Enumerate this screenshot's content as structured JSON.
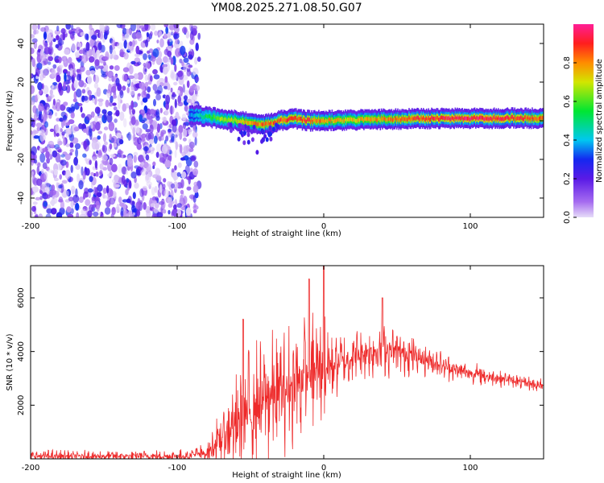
{
  "title": "YM08.2025.271.08.50.G07",
  "colors": {
    "snr_line": "#ee2a2a",
    "axis": "#000000"
  },
  "chart_data": [
    {
      "type": "heatmap",
      "xlabel": "Height of straight line (km)",
      "ylabel": "Frequency (Hz)",
      "xlim": [
        -200,
        150
      ],
      "ylim": [
        -50,
        50
      ],
      "xticks": [
        -200,
        -100,
        0,
        100
      ],
      "yticks": [
        -40,
        -20,
        0,
        20,
        40
      ],
      "grid": false,
      "colorbar": {
        "label": "Normalized spectral amplitude",
        "range": [
          0,
          1
        ],
        "ticks": [
          0.0,
          0.2,
          0.4,
          0.6,
          0.8
        ],
        "colormap": "rainbow (violet → blue → cyan → green → yellow → red → magenta)"
      },
      "noise_region_x": [
        -200,
        -85
      ],
      "ridge": {
        "x": [
          -90,
          -80,
          -70,
          -60,
          -50,
          -40,
          -30,
          -20,
          -10,
          0,
          20,
          40,
          60,
          80,
          100,
          120,
          150
        ],
        "freq": [
          3,
          2,
          1,
          0,
          -1,
          -2,
          0,
          1,
          0,
          0,
          0.5,
          0.8,
          1,
          1.2,
          1.2,
          1.3,
          1.4
        ],
        "peak_amplitude": [
          0.4,
          0.6,
          0.7,
          0.75,
          0.85,
          0.9,
          0.95,
          0.95,
          0.95,
          0.85,
          0.8,
          0.85,
          0.95,
          1.0,
          1.0,
          1.0,
          0.9
        ]
      }
    },
    {
      "type": "line",
      "xlabel": "Height of straight line (km)",
      "ylabel": "SNR (10 * v/v)",
      "xlim": [
        -200,
        150
      ],
      "ylim": [
        0,
        7200
      ],
      "xticks": [
        -200,
        -100,
        0,
        100
      ],
      "yticks": [
        2000,
        4000,
        6000
      ],
      "grid": false,
      "envelope": {
        "x": [
          -200,
          -100,
          -80,
          -70,
          -60,
          -50,
          -40,
          -30,
          -20,
          -10,
          0,
          10,
          20,
          30,
          40,
          50,
          60,
          70,
          80,
          90,
          100,
          110,
          120,
          130,
          140,
          150
        ],
        "base": [
          100,
          100,
          200,
          800,
          1300,
          1800,
          2200,
          2500,
          2800,
          3100,
          3400,
          3600,
          3800,
          4000,
          4100,
          4000,
          3900,
          3700,
          3500,
          3300,
          3200,
          3100,
          3000,
          2900,
          2800,
          2700
        ],
        "spread": [
          250,
          250,
          400,
          1200,
          2200,
          2600,
          2600,
          2600,
          2600,
          2600,
          2400,
          1300,
          1100,
          1100,
          1200,
          1000,
          900,
          700,
          600,
          500,
          450,
          400,
          350,
          300,
          300,
          300
        ]
      },
      "notable_peaks": [
        {
          "x": 0,
          "y": 7200
        },
        {
          "x": -10,
          "y": 6700
        },
        {
          "x": -55,
          "y": 5200
        },
        {
          "x": 40,
          "y": 6000
        }
      ]
    }
  ]
}
